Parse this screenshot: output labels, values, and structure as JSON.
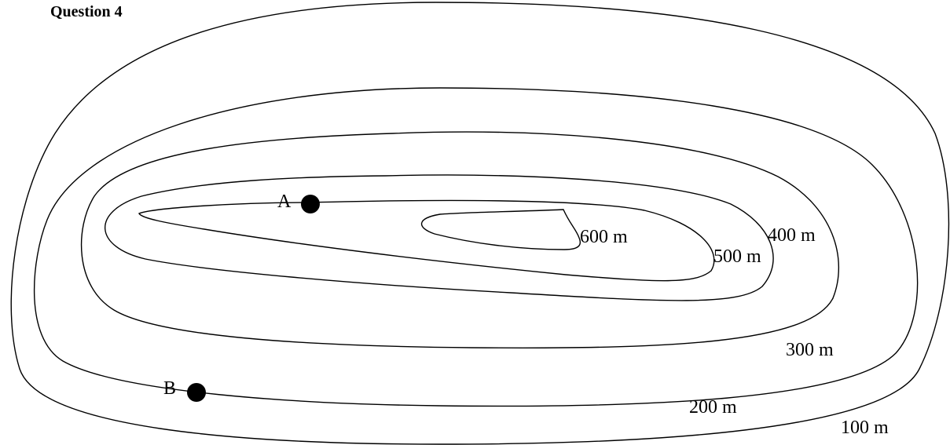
{
  "title": "Question 4",
  "contours": [
    {
      "elevation": "100 m"
    },
    {
      "elevation": "200 m"
    },
    {
      "elevation": "300 m"
    },
    {
      "elevation": "400 m"
    },
    {
      "elevation": "500 m"
    },
    {
      "elevation": "600 m"
    }
  ],
  "points": [
    {
      "label": "A"
    },
    {
      "label": "B"
    }
  ],
  "colors": {
    "line": "#000000",
    "background": "#ffffff"
  }
}
